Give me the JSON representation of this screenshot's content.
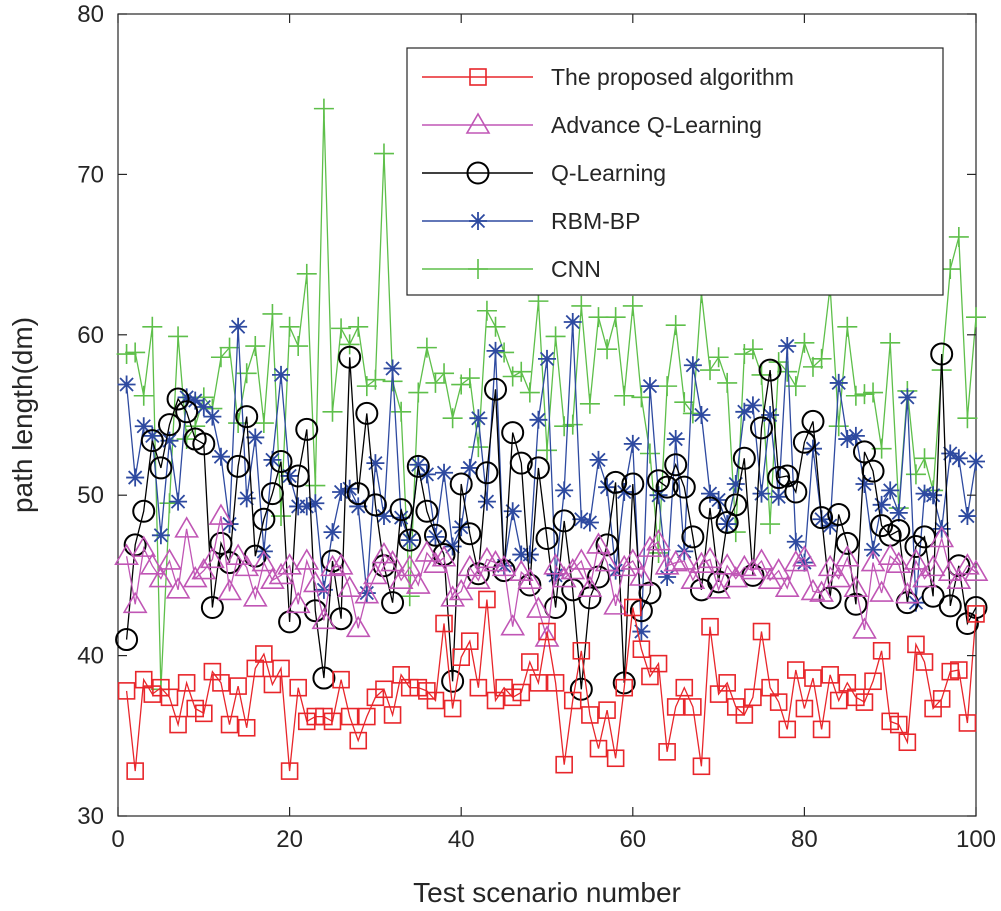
{
  "chart_data": {
    "type": "line",
    "title": "",
    "xlabel": "Test scenario number",
    "ylabel": "path length(dm)",
    "xlim": [
      0,
      100
    ],
    "ylim": [
      30,
      80
    ],
    "xticks": [
      0,
      20,
      40,
      60,
      80,
      100
    ],
    "yticks": [
      30,
      40,
      50,
      60,
      70,
      80
    ],
    "grid": false,
    "legend_position": "top-right",
    "series": [
      {
        "name": "The proposed algorithm",
        "color": "#e8262b",
        "marker": "square",
        "values": [
          37.8,
          32.8,
          38.5,
          37.6,
          38.0,
          37.4,
          35.7,
          38.3,
          36.7,
          36.4,
          39.0,
          38.3,
          35.7,
          38.1,
          35.5,
          39.2,
          40.1,
          38.2,
          39.2,
          32.8,
          38.0,
          35.9,
          36.2,
          36.2,
          35.9,
          38.5,
          36.2,
          34.7,
          36.2,
          37.4,
          37.9,
          36.3,
          38.8,
          38.0,
          38.0,
          37.8,
          37.2,
          42.0,
          36.7,
          39.9,
          40.9,
          38.0,
          43.5,
          37.2,
          38.0,
          37.4,
          37.7,
          39.6,
          38.3,
          41.5,
          38.3,
          33.2,
          37.2,
          40.3,
          36.3,
          34.2,
          36.6,
          33.6,
          38.0,
          43.0,
          40.4,
          38.7,
          39.5,
          34.0,
          36.8,
          38.0,
          36.8,
          33.1,
          41.8,
          37.6,
          38.3,
          36.8,
          36.3,
          37.4,
          41.5,
          38.0,
          37.1,
          35.4,
          39.1,
          36.7,
          38.6,
          35.4,
          38.8,
          37.2,
          38.3,
          37.4,
          37.1,
          38.4,
          40.3,
          35.9,
          35.7,
          34.6,
          40.7,
          39.6,
          36.7,
          37.3,
          39.0,
          39.1,
          35.8,
          42.6
        ]
      },
      {
        "name": "Advance Q-Learning",
        "color": "#c056b5",
        "marker": "triangle",
        "values": [
          46.2,
          43.2,
          46.7,
          45.6,
          44.8,
          45.9,
          44.1,
          47.9,
          44.8,
          45.3,
          46.0,
          48.7,
          44.0,
          46.2,
          45.5,
          43.6,
          45.8,
          44.7,
          45.0,
          45.6,
          43.2,
          45.9,
          44.5,
          42.2,
          45.5,
          45.6,
          44.2,
          41.7,
          43.8,
          45.0,
          46.3,
          45.8,
          44.7,
          45.5,
          44.4,
          46.4,
          45.7,
          46.1,
          43.6,
          44.0,
          45.5,
          44.7,
          46.0,
          45.8,
          45.5,
          41.8,
          45.2,
          44.7,
          42.9,
          41.1,
          45.6,
          44.8,
          45.3,
          45.9,
          44.2,
          46.9,
          45.8,
          43.1,
          45.5,
          45.9,
          44.9,
          46.7,
          47.1,
          45.6,
          45.8,
          45.9,
          44.7,
          45.7,
          46.0,
          44.1,
          45.6,
          44.8,
          45.5,
          45.3,
          45.9,
          44.7,
          45.3,
          44.2,
          45.8,
          46.1,
          44.0,
          43.9,
          45.5,
          44.8,
          46.1,
          44.2,
          41.6,
          45.8,
          43.9,
          46.2,
          45.7,
          43.8,
          45.9,
          44.8,
          45.5,
          47.3,
          45.2,
          44.7,
          45.6,
          45.2
        ]
      },
      {
        "name": "Q-Learning",
        "color": "#000000",
        "marker": "circle",
        "values": [
          41.0,
          46.9,
          49.0,
          53.4,
          51.7,
          54.4,
          56.0,
          55.2,
          53.5,
          53.2,
          43.0,
          47.0,
          45.8,
          51.8,
          54.9,
          46.2,
          48.5,
          50.1,
          52.1,
          42.1,
          51.2,
          54.1,
          42.8,
          38.6,
          45.9,
          42.3,
          58.6,
          50.1,
          55.1,
          49.4,
          45.6,
          43.3,
          49.1,
          47.2,
          51.8,
          49.0,
          47.5,
          46.3,
          38.4,
          50.7,
          47.6,
          45.1,
          51.4,
          56.6,
          45.3,
          53.9,
          52.0,
          44.4,
          51.7,
          47.3,
          43.0,
          48.4,
          44.1,
          37.9,
          43.6,
          44.9,
          46.9,
          50.8,
          38.3,
          50.7,
          42.8,
          43.9,
          50.9,
          50.5,
          51.9,
          50.5,
          47.4,
          44.1,
          49.2,
          44.6,
          48.3,
          49.4,
          52.3,
          45.0,
          54.2,
          57.8,
          51.1,
          51.2,
          50.2,
          53.3,
          54.6,
          48.6,
          43.6,
          48.8,
          47.0,
          43.2,
          52.7,
          51.5,
          48.1,
          47.5,
          47.8,
          43.3,
          46.8,
          47.4,
          43.7,
          58.8,
          43.1,
          45.6,
          42.0,
          43.0
        ]
      },
      {
        "name": "RBM-BP",
        "color": "#2e4aa0",
        "marker": "asterisk",
        "values": [
          56.9,
          51.1,
          54.3,
          53.7,
          47.5,
          53.4,
          49.6,
          56.1,
          55.9,
          55.5,
          54.9,
          52.4,
          48.2,
          60.5,
          49.8,
          53.6,
          46.5,
          52.2,
          57.5,
          51.2,
          49.3,
          49.3,
          49.5,
          44.1,
          47.7,
          50.2,
          50.4,
          49.3,
          43.9,
          52.0,
          48.7,
          57.9,
          48.6,
          47.2,
          51.9,
          51.3,
          47.4,
          51.4,
          46.8,
          48.0,
          51.7,
          54.8,
          49.6,
          59.0,
          45.6,
          49.0,
          46.3,
          46.3,
          54.7,
          58.5,
          45.0,
          50.3,
          60.8,
          48.5,
          48.3,
          52.2,
          50.5,
          45.3,
          50.2,
          53.2,
          41.5,
          56.8,
          50.0,
          44.9,
          53.5,
          46.5,
          58.1,
          55.0,
          50.1,
          49.7,
          48.2,
          50.7,
          55.2,
          55.6,
          50.1,
          55.0,
          49.9,
          59.3,
          47.1,
          45.8,
          52.9,
          48.5,
          48.1,
          57.0,
          53.5,
          53.7,
          50.7,
          46.6,
          49.4,
          50.3,
          48.9,
          56.1,
          43.3,
          50.1,
          50.0,
          47.9,
          52.6,
          52.3,
          48.7,
          52.1
        ]
      },
      {
        "name": "CNN",
        "color": "#5ebf4a",
        "marker": "plus",
        "values": [
          58.8,
          58.9,
          56.2,
          60.5,
          37.9,
          49.5,
          59.9,
          53.5,
          54.3,
          56.1,
          55.4,
          58.6,
          59.2,
          54.5,
          57.6,
          59.3,
          54.5,
          61.3,
          48.7,
          60.5,
          59.3,
          63.8,
          50.6,
          74.1,
          55.2,
          60.4,
          59.4,
          60.5,
          56.8,
          57.2,
          71.3,
          57.1,
          55.2,
          43.7,
          56.4,
          59.2,
          57.0,
          57.6,
          54.8,
          56.9,
          57.3,
          53.0,
          61.5,
          60.5,
          58.9,
          57.4,
          57.7,
          56.4,
          62.1,
          52.8,
          59.9,
          54.3,
          54.4,
          61.8,
          55.7,
          61.1,
          59.1,
          61.1,
          56.2,
          61.8,
          56.1,
          52.6,
          46.4,
          56.8,
          60.6,
          55.8,
          55.1,
          62.6,
          57.8,
          58.6,
          57.0,
          47.7,
          58.8,
          59.1,
          57.5,
          48.2,
          58.3,
          57.7,
          56.8,
          59.5,
          58.0,
          58.5,
          63.0,
          54.3,
          60.5,
          56.2,
          56.3,
          56.4,
          52.9,
          59.5,
          49.2,
          56.5,
          51.3,
          52.3,
          50.3,
          57.8,
          64.1,
          66.1,
          54.8,
          61.1
        ]
      }
    ]
  }
}
